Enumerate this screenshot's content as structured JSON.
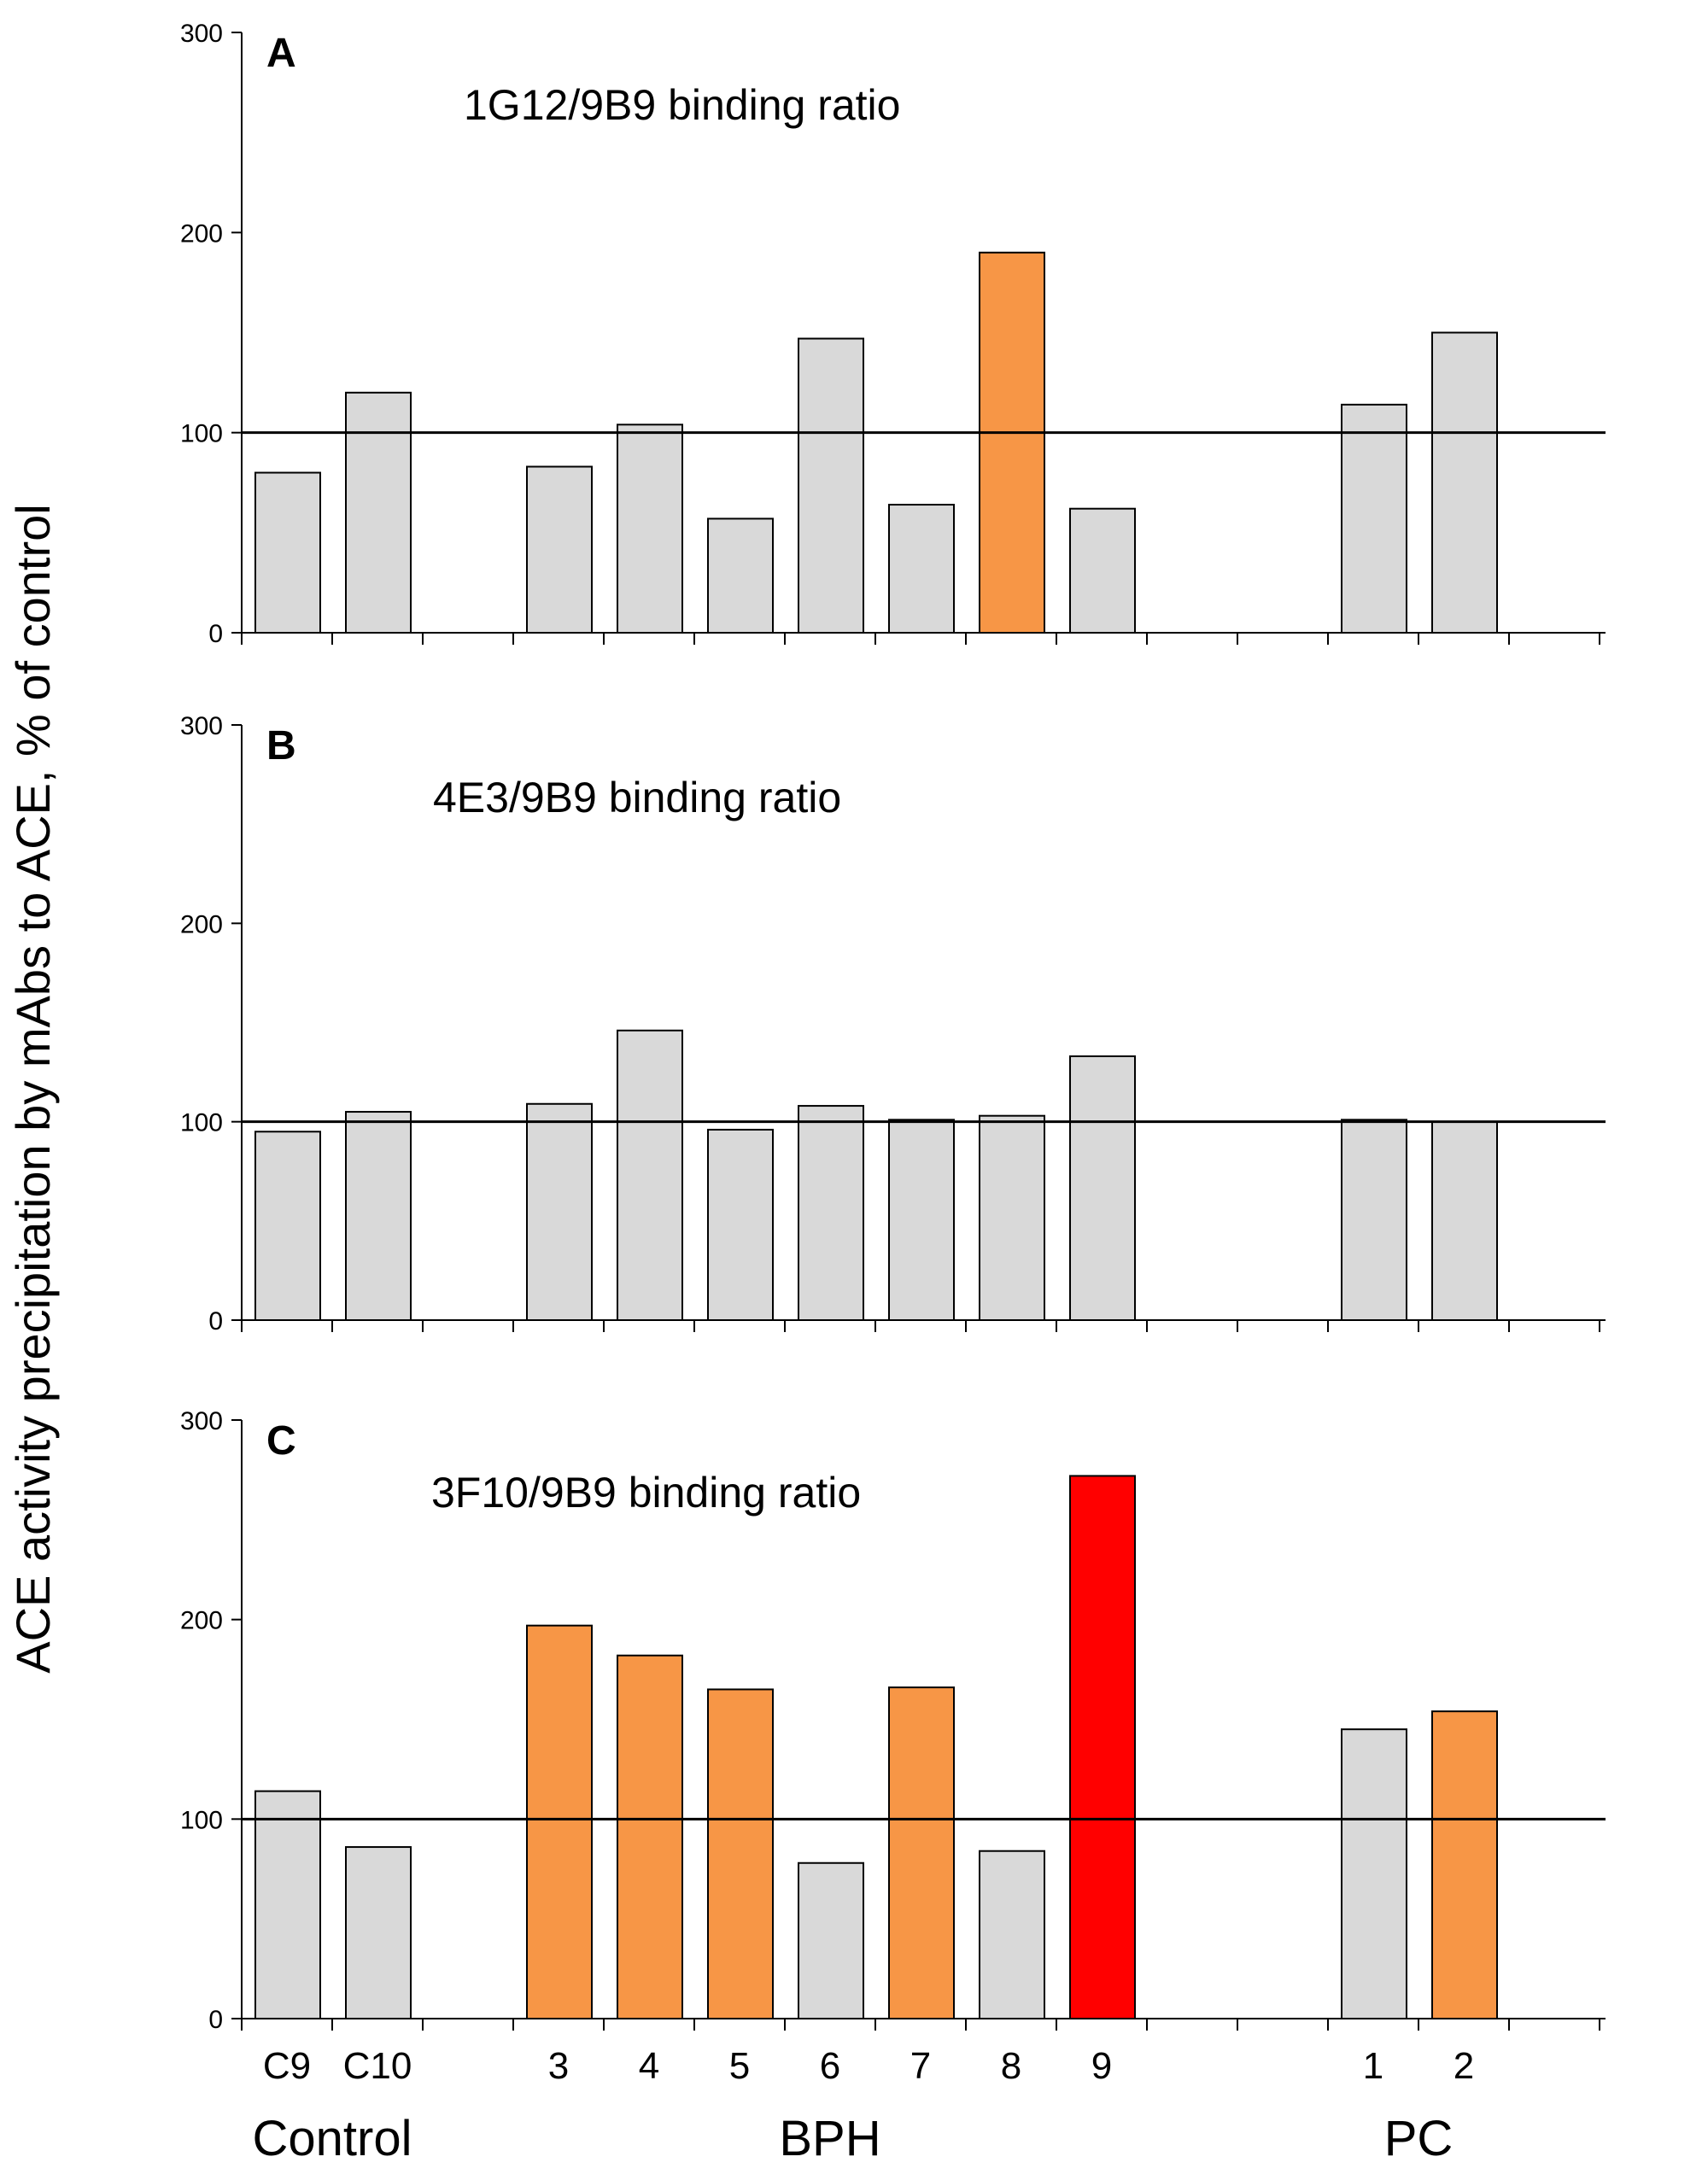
{
  "chart_data": {
    "type": "bar",
    "ylabel": "ACE activity precipitation by mAbs to ACE,     %  of control",
    "ylim": [
      0,
      300
    ],
    "yticks": [
      0,
      100,
      200,
      300
    ],
    "reference_line": 100,
    "categories": [
      "C9",
      "C10",
      "3",
      "4",
      "5",
      "6",
      "7",
      "8",
      "9",
      "1",
      "2"
    ],
    "groups": [
      {
        "label": "Control",
        "categories": [
          "C9",
          "C10"
        ]
      },
      {
        "label": "BPH",
        "categories": [
          "3",
          "4",
          "5",
          "6",
          "7",
          "8",
          "9"
        ]
      },
      {
        "label": "PC",
        "categories": [
          "1",
          "2"
        ]
      }
    ],
    "panels": [
      {
        "letter": "A",
        "title": "1G12/9B9 binding ratio",
        "values": [
          80,
          120,
          83,
          104,
          57,
          147,
          64,
          190,
          62,
          114,
          150
        ],
        "highlight": [
          "none",
          "none",
          "none",
          "none",
          "none",
          "none",
          "none",
          "orange",
          "none",
          "none",
          "none"
        ]
      },
      {
        "letter": "B",
        "title": "4E3/9B9 binding ratio",
        "values": [
          95,
          105,
          109,
          146,
          96,
          108,
          101,
          103,
          133,
          101,
          100
        ],
        "highlight": [
          "none",
          "none",
          "none",
          "none",
          "none",
          "none",
          "none",
          "none",
          "none",
          "none",
          "none"
        ]
      },
      {
        "letter": "C",
        "title": "3F10/9B9 binding ratio",
        "values": [
          114,
          86,
          197,
          182,
          165,
          78,
          166,
          84,
          272,
          145,
          154
        ],
        "highlight": [
          "none",
          "none",
          "orange",
          "orange",
          "orange",
          "none",
          "orange",
          "none",
          "red",
          "none",
          "orange"
        ]
      }
    ],
    "colors": {
      "none": "#d9d9d9",
      "orange": "#f79646",
      "red": "#ff0000",
      "outline": "#000000"
    },
    "grid": false,
    "legend": "none"
  }
}
